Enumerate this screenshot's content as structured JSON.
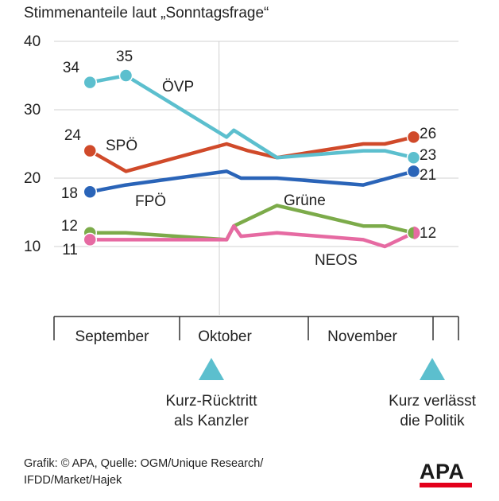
{
  "chart_data": {
    "type": "line",
    "title": "Stimmenanteile laut „Sonntagsfrage“",
    "ylim": [
      0,
      40
    ],
    "yticks": [
      10,
      20,
      30,
      40
    ],
    "xlim": [
      0,
      54
    ],
    "months": [
      {
        "label": "September",
        "start": 0,
        "end": 18
      },
      {
        "label": "Oktober",
        "start": 18,
        "end": 37
      },
      {
        "label": "November",
        "start": 37,
        "end": 55
      }
    ],
    "events": [
      {
        "x": 23,
        "label": [
          "Kurz-Rücktritt",
          "als Kanzler"
        ]
      },
      {
        "x": 52,
        "label": [
          "Kurz verlässt",
          "die Politik"
        ]
      }
    ],
    "series": [
      {
        "name": "ÖVP",
        "color": "#5cbfce",
        "x": [
          5,
          10,
          24,
          25,
          31,
          43,
          46,
          50
        ],
        "y": [
          34,
          35,
          26,
          27,
          23,
          24,
          24,
          23
        ],
        "markers": [
          [
            5,
            34,
            "34"
          ],
          [
            10,
            35,
            "35"
          ],
          [
            50,
            23,
            "23"
          ]
        ]
      },
      {
        "name": "SPÖ",
        "color": "#d04a2a",
        "x": [
          5,
          10,
          24,
          27,
          31,
          43,
          46,
          50
        ],
        "y": [
          24,
          21,
          25,
          24,
          23,
          25,
          25,
          26
        ],
        "markers": [
          [
            5,
            24,
            "24"
          ],
          [
            50,
            26,
            "26"
          ]
        ]
      },
      {
        "name": "FPÖ",
        "color": "#2a64b8",
        "x": [
          5,
          10,
          24,
          26,
          31,
          43,
          50
        ],
        "y": [
          18,
          19,
          21,
          20,
          20,
          19,
          21
        ],
        "markers": [
          [
            5,
            18,
            "18"
          ],
          [
            50,
            21,
            "21"
          ]
        ]
      },
      {
        "name": "Grüne",
        "color": "#7cab4a",
        "x": [
          5,
          10,
          24,
          25,
          31,
          43,
          46,
          50
        ],
        "y": [
          12,
          12,
          11,
          13,
          16,
          13,
          13,
          12
        ],
        "markers": [
          [
            5,
            12,
            "12"
          ],
          [
            50,
            12,
            "12"
          ]
        ]
      },
      {
        "name": "NEOS",
        "color": "#e66aa2",
        "x": [
          5,
          10,
          24,
          25,
          26,
          31,
          43,
          46,
          50
        ],
        "y": [
          11,
          11,
          11,
          13,
          11.5,
          12,
          11,
          10,
          12
        ],
        "markers": [
          [
            5,
            11,
            "11"
          ]
        ]
      }
    ]
  },
  "source_lines": [
    "Grafik: © APA, Quelle: OGM/Unique Research/",
    "IFDD/Market/Hajek"
  ],
  "logo": "APA"
}
